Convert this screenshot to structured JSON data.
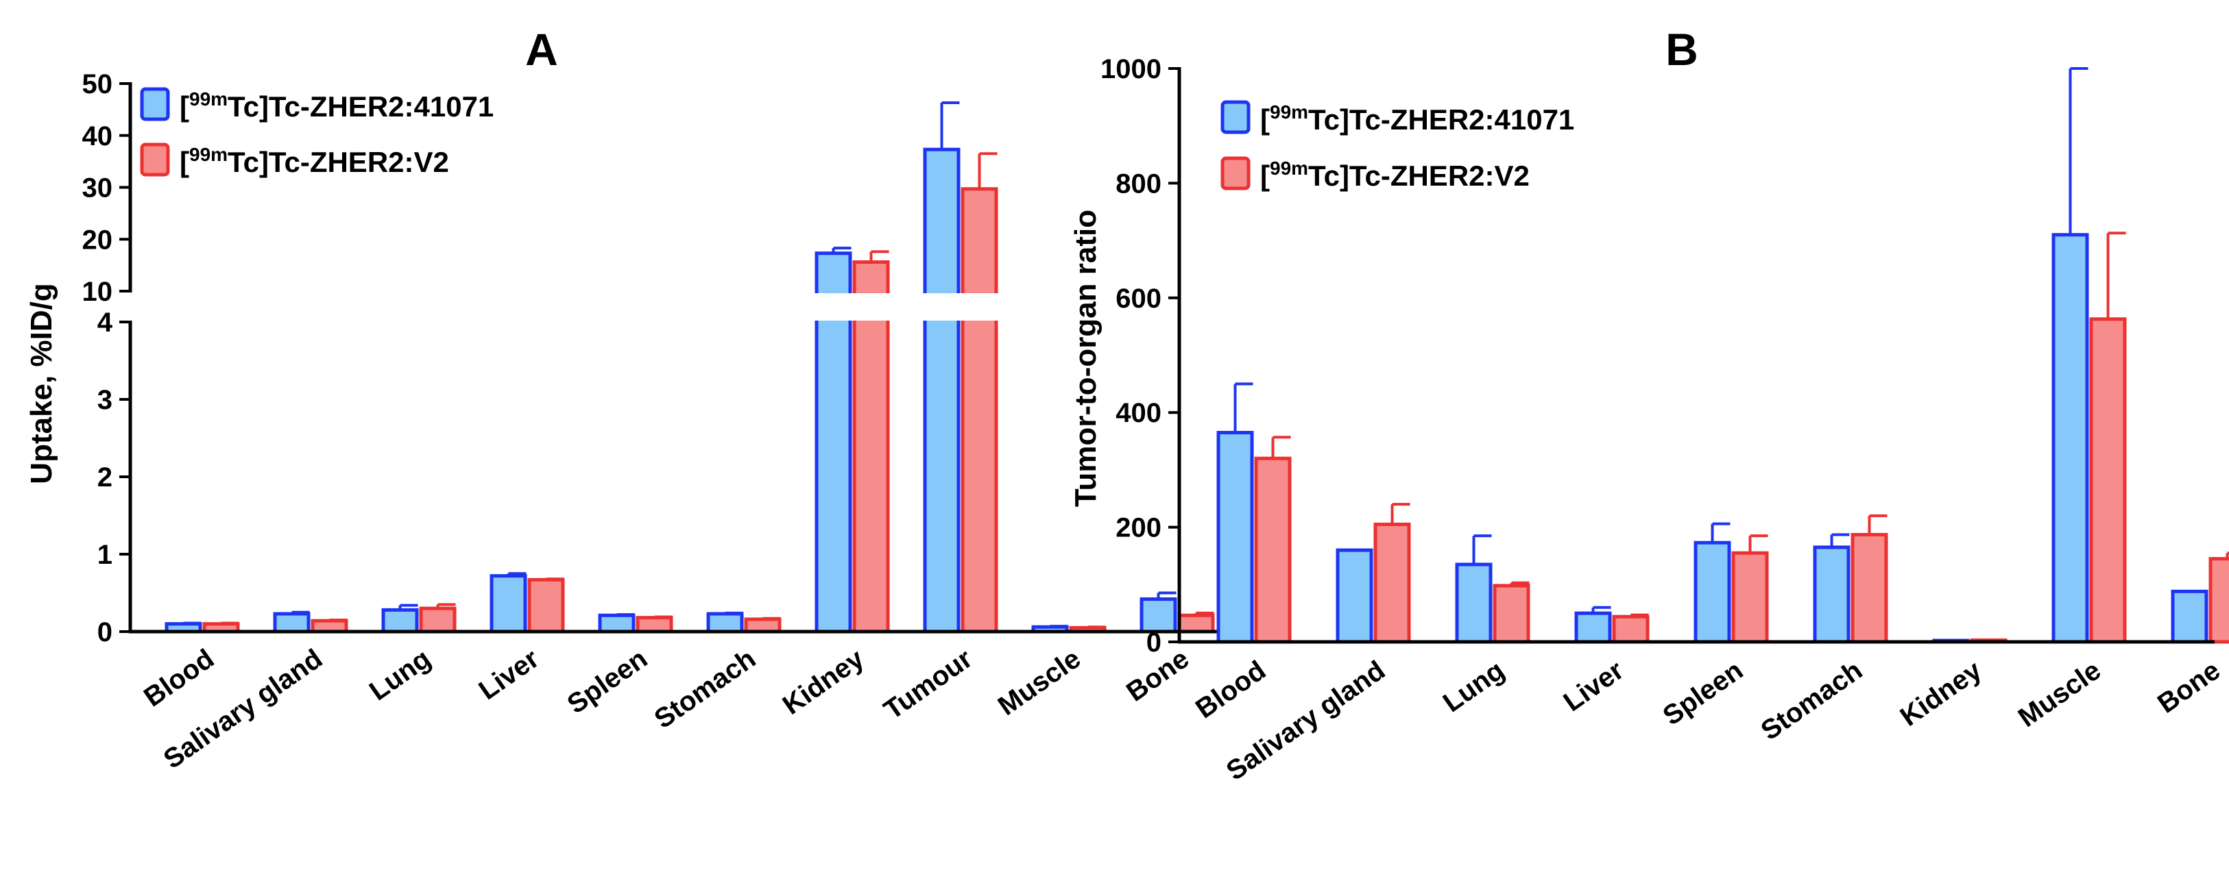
{
  "colors": {
    "series_1_fill": "#87C8FA",
    "series_1_edge": "#1E34F0",
    "series_2_fill": "#F78C8C",
    "series_2_edge": "#EB3232"
  },
  "chart_data": [
    {
      "panel": "A",
      "type": "bar",
      "title": "A",
      "xlabel": "",
      "ylabel": "Uptake, %ID/g",
      "categories": [
        "Blood",
        "Salivary gland",
        "Lung",
        "Liver",
        "Spleen",
        "Stomach",
        "Kidney",
        "Tumour",
        "Muscle",
        "Bone"
      ],
      "series": [
        {
          "name_pre": "[",
          "name_sup": "99m",
          "name_post": "Tc]Tc-ZHER2:41071",
          "values": [
            0.1,
            0.23,
            0.28,
            0.72,
            0.21,
            0.23,
            17.3,
            37.3,
            0.06,
            0.42
          ],
          "errors": [
            0.01,
            0.02,
            0.06,
            0.03,
            0.01,
            0.01,
            1.0,
            9.0,
            0.01,
            0.08
          ]
        },
        {
          "name_pre": "[",
          "name_sup": "99m",
          "name_post": "Tc]Tc-ZHER2:V2",
          "values": [
            0.1,
            0.14,
            0.3,
            0.67,
            0.18,
            0.16,
            15.6,
            29.7,
            0.05,
            0.21
          ],
          "errors": [
            0.01,
            0.01,
            0.05,
            0.01,
            0.01,
            0.01,
            2.0,
            6.8,
            0.01,
            0.03
          ]
        }
      ],
      "axis_break": {
        "lower": {
          "ylim": [
            0,
            4
          ],
          "ticks": [
            "0",
            "1",
            "2",
            "3",
            "4"
          ]
        },
        "upper": {
          "ylim": [
            10,
            50
          ],
          "ticks": [
            "10",
            "20",
            "30",
            "40",
            "50"
          ]
        }
      },
      "legend": "top-left"
    },
    {
      "panel": "B",
      "type": "bar",
      "title": "B",
      "xlabel": "",
      "ylabel": "Tumor-to-organ ratio",
      "categories": [
        "Blood",
        "Salivary gland",
        "Lung",
        "Liver",
        "Spleen",
        "Stomach",
        "Kidney",
        "Muscle",
        "Bone"
      ],
      "series": [
        {
          "name_pre": "[",
          "name_sup": "99m",
          "name_post": "Tc]Tc-ZHER2:41071",
          "values": [
            365,
            160,
            135,
            50,
            173,
            165,
            2,
            710,
            88
          ],
          "errors": [
            85,
            0,
            50,
            10,
            33,
            22,
            0,
            290,
            0
          ]
        },
        {
          "name_pre": "[",
          "name_sup": "99m",
          "name_post": "Tc]Tc-ZHER2:V2",
          "values": [
            320,
            205,
            98,
            44,
            155,
            187,
            3,
            563,
            145
          ],
          "errors": [
            37,
            35,
            5,
            3,
            30,
            33,
            0,
            150,
            10
          ]
        }
      ],
      "ylim": [
        0,
        1000
      ],
      "yticks": [
        "0",
        "200",
        "400",
        "600",
        "800",
        "1000"
      ],
      "legend": "top-left"
    }
  ]
}
